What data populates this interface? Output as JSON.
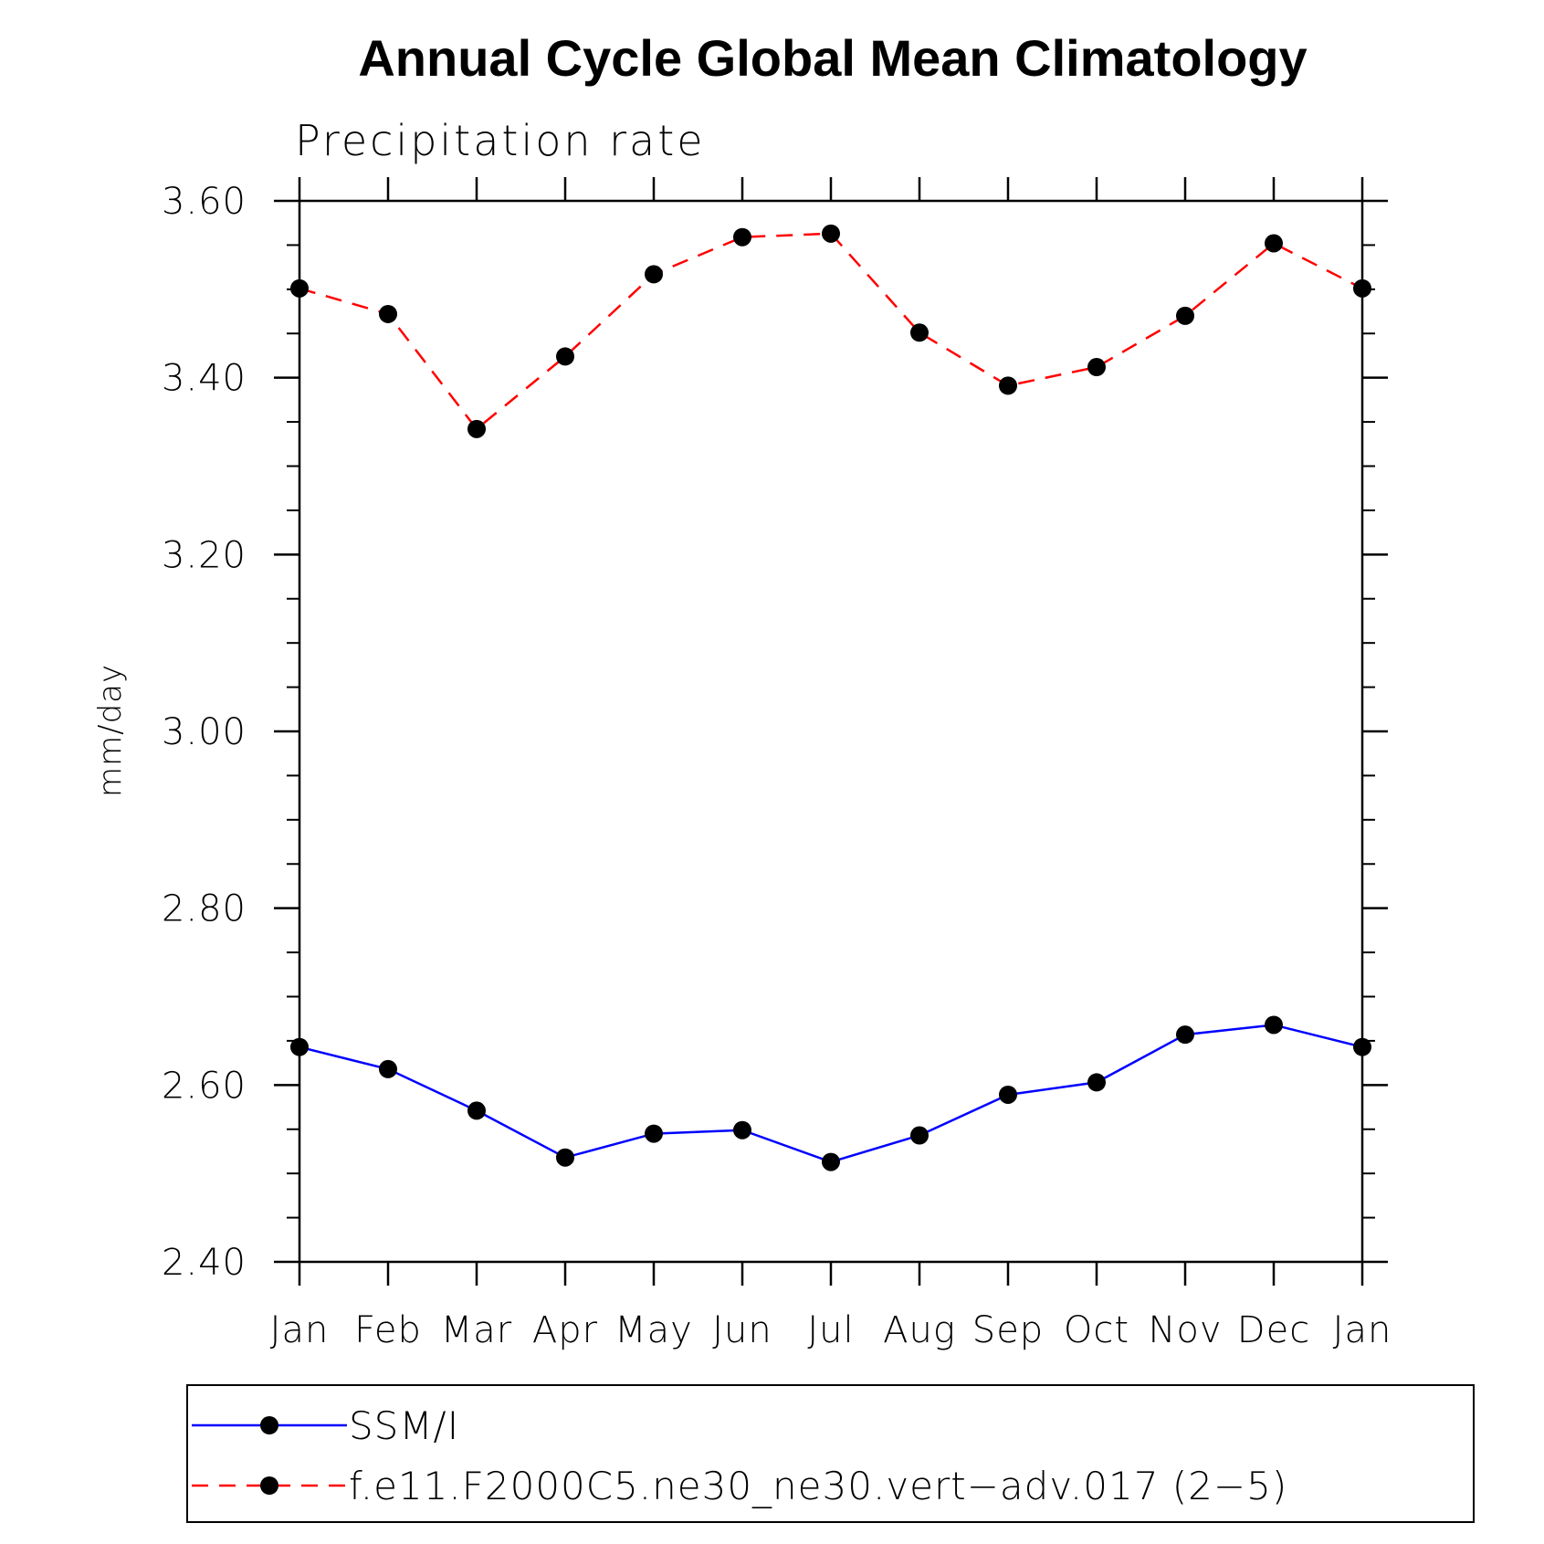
{
  "chart_data": {
    "type": "line",
    "title": "Annual Cycle Global Mean Climatology",
    "subtitle": "Precipitation rate",
    "ylabel": "mm/day",
    "xlabel": "",
    "categories": [
      "Jan",
      "Feb",
      "Mar",
      "Apr",
      "May",
      "Jun",
      "Jul",
      "Aug",
      "Sep",
      "Oct",
      "Nov",
      "Dec",
      "Jan"
    ],
    "ylim": [
      2.4,
      3.6
    ],
    "yticks": [
      "2.40",
      "2.60",
      "2.80",
      "3.00",
      "3.20",
      "3.40",
      "3.60"
    ],
    "grid": false,
    "legend_position": "bottom",
    "series": [
      {
        "name": "SSM/I",
        "color": "#0000ff",
        "line_style": "solid",
        "marker": "filled-circle",
        "values": [
          2.643,
          2.618,
          2.571,
          2.518,
          2.545,
          2.549,
          2.513,
          2.543,
          2.589,
          2.603,
          2.657,
          2.668,
          2.643
        ]
      },
      {
        "name": "f.e11.F2000C5.ne30_ne30.vert−adv.017 (2−5)",
        "color": "#ff0000",
        "line_style": "dashed",
        "marker": "filled-circle",
        "values": [
          3.501,
          3.472,
          3.342,
          3.424,
          3.517,
          3.559,
          3.563,
          3.451,
          3.391,
          3.412,
          3.47,
          3.552,
          3.501
        ]
      }
    ]
  }
}
